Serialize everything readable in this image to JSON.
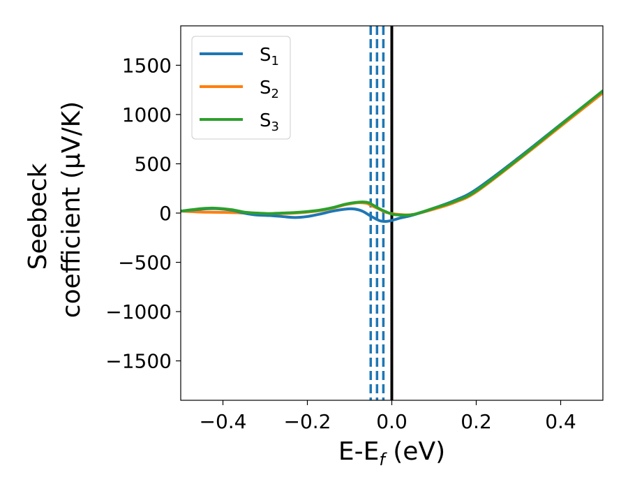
{
  "chart_data": {
    "type": "line",
    "xlabel": {
      "main": "E-E",
      "sub": "f",
      "rest": " (eV)"
    },
    "ylabel": {
      "line1": "Seebeck",
      "line2": "coefficient  (μV/K)"
    },
    "xlim": [
      -0.5,
      0.5
    ],
    "ylim": [
      -1900,
      1900
    ],
    "x_ticks": [
      {
        "value": -0.4,
        "label": "−0.4"
      },
      {
        "value": -0.2,
        "label": "−0.2"
      },
      {
        "value": 0.0,
        "label": "0.0"
      },
      {
        "value": 0.2,
        "label": "0.2"
      },
      {
        "value": 0.4,
        "label": "0.4"
      }
    ],
    "y_ticks": [
      {
        "value": 1500,
        "label": "1500"
      },
      {
        "value": 1000,
        "label": "1000"
      },
      {
        "value": 500,
        "label": "500"
      },
      {
        "value": 0,
        "label": "0"
      },
      {
        "value": -500,
        "label": "−500"
      },
      {
        "value": -1000,
        "label": "−1000"
      },
      {
        "value": -1500,
        "label": "−1500"
      }
    ],
    "legend_position": "top-left",
    "vertical_lines": [
      {
        "x": -0.05,
        "style": "dashed",
        "color": "#1f77b4"
      },
      {
        "x": -0.035,
        "style": "dashed",
        "color": "#1f77b4"
      },
      {
        "x": -0.02,
        "style": "dashed",
        "color": "#1f77b4"
      },
      {
        "x": 0.0,
        "style": "solid",
        "color": "#000000"
      }
    ],
    "series": [
      {
        "name": "S",
        "sub": "1",
        "color": "#1f77b4",
        "x": [
          -0.5,
          -0.45,
          -0.42,
          -0.38,
          -0.35,
          -0.32,
          -0.29,
          -0.26,
          -0.23,
          -0.2,
          -0.17,
          -0.14,
          -0.11,
          -0.09,
          -0.07,
          -0.05,
          -0.03,
          -0.015,
          0.0,
          0.02,
          0.05,
          0.1,
          0.15,
          0.2,
          0.3,
          0.4,
          0.5
        ],
        "y": [
          20,
          40,
          45,
          30,
          0,
          -20,
          -25,
          -35,
          -45,
          -35,
          -10,
          20,
          40,
          42,
          20,
          -30,
          -75,
          -85,
          -75,
          -50,
          -20,
          50,
          130,
          240,
          560,
          900,
          1240
        ]
      },
      {
        "name": "S",
        "sub": "2",
        "color": "#ff7f0e",
        "x": [
          -0.5,
          -0.45,
          -0.42,
          -0.38,
          -0.35,
          -0.32,
          -0.29,
          -0.26,
          -0.23,
          -0.2,
          -0.17,
          -0.14,
          -0.11,
          -0.08,
          -0.06,
          -0.05,
          -0.03,
          -0.015,
          0.0,
          0.02,
          0.05,
          0.1,
          0.15,
          0.2,
          0.3,
          0.4,
          0.5
        ],
        "y": [
          20,
          10,
          8,
          5,
          0,
          -5,
          -8,
          -5,
          0,
          10,
          25,
          50,
          85,
          105,
          100,
          80,
          40,
          10,
          -5,
          -15,
          -15,
          40,
          110,
          215,
          540,
          880,
          1220
        ]
      },
      {
        "name": "S",
        "sub": "3",
        "color": "#2ca02c",
        "x": [
          -0.5,
          -0.45,
          -0.42,
          -0.38,
          -0.35,
          -0.32,
          -0.29,
          -0.26,
          -0.23,
          -0.2,
          -0.17,
          -0.14,
          -0.11,
          -0.08,
          -0.06,
          -0.05,
          -0.03,
          -0.015,
          0.0,
          0.02,
          0.05,
          0.1,
          0.15,
          0.2,
          0.3,
          0.4,
          0.5
        ],
        "y": [
          20,
          45,
          50,
          35,
          10,
          0,
          -5,
          0,
          5,
          15,
          30,
          55,
          90,
          110,
          110,
          95,
          45,
          15,
          -10,
          -20,
          -15,
          50,
          120,
          225,
          550,
          895,
          1240
        ]
      }
    ]
  }
}
